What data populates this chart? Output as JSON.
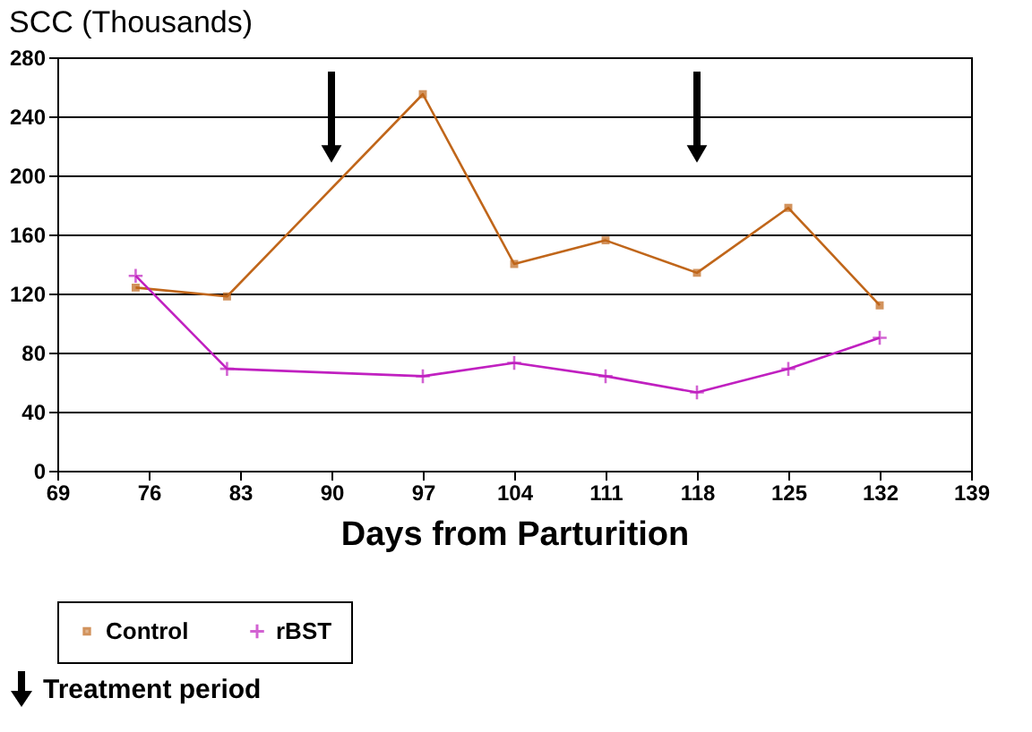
{
  "chart_data": {
    "type": "line",
    "title": "SCC (Thousands)",
    "xlabel": "Days from Parturition",
    "x": [
      75,
      82,
      97,
      104,
      111,
      118,
      125,
      132
    ],
    "series": [
      {
        "name": "Control",
        "color": "#c0661a",
        "marker": "square",
        "values": [
          124,
          118,
          255,
          140,
          156,
          134,
          178,
          112
        ]
      },
      {
        "name": "rBST",
        "color": "#c020c0",
        "marker": "cross",
        "values": [
          132,
          69,
          64,
          73,
          64,
          53,
          69,
          90
        ]
      }
    ],
    "xlim": [
      69,
      139
    ],
    "xticks": [
      69,
      76,
      83,
      90,
      97,
      104,
      111,
      118,
      125,
      132,
      139
    ],
    "ylim": [
      0,
      280
    ],
    "yticks": [
      0,
      40,
      80,
      120,
      160,
      200,
      240,
      280
    ],
    "ref_lines": [
      {
        "axis": "x",
        "value": 90,
        "color": "#000000"
      },
      {
        "axis": "x",
        "value": 118,
        "color": "#000000"
      }
    ],
    "annotations": [
      "Treatment period"
    ],
    "grid": "y",
    "legend": "bottom"
  }
}
